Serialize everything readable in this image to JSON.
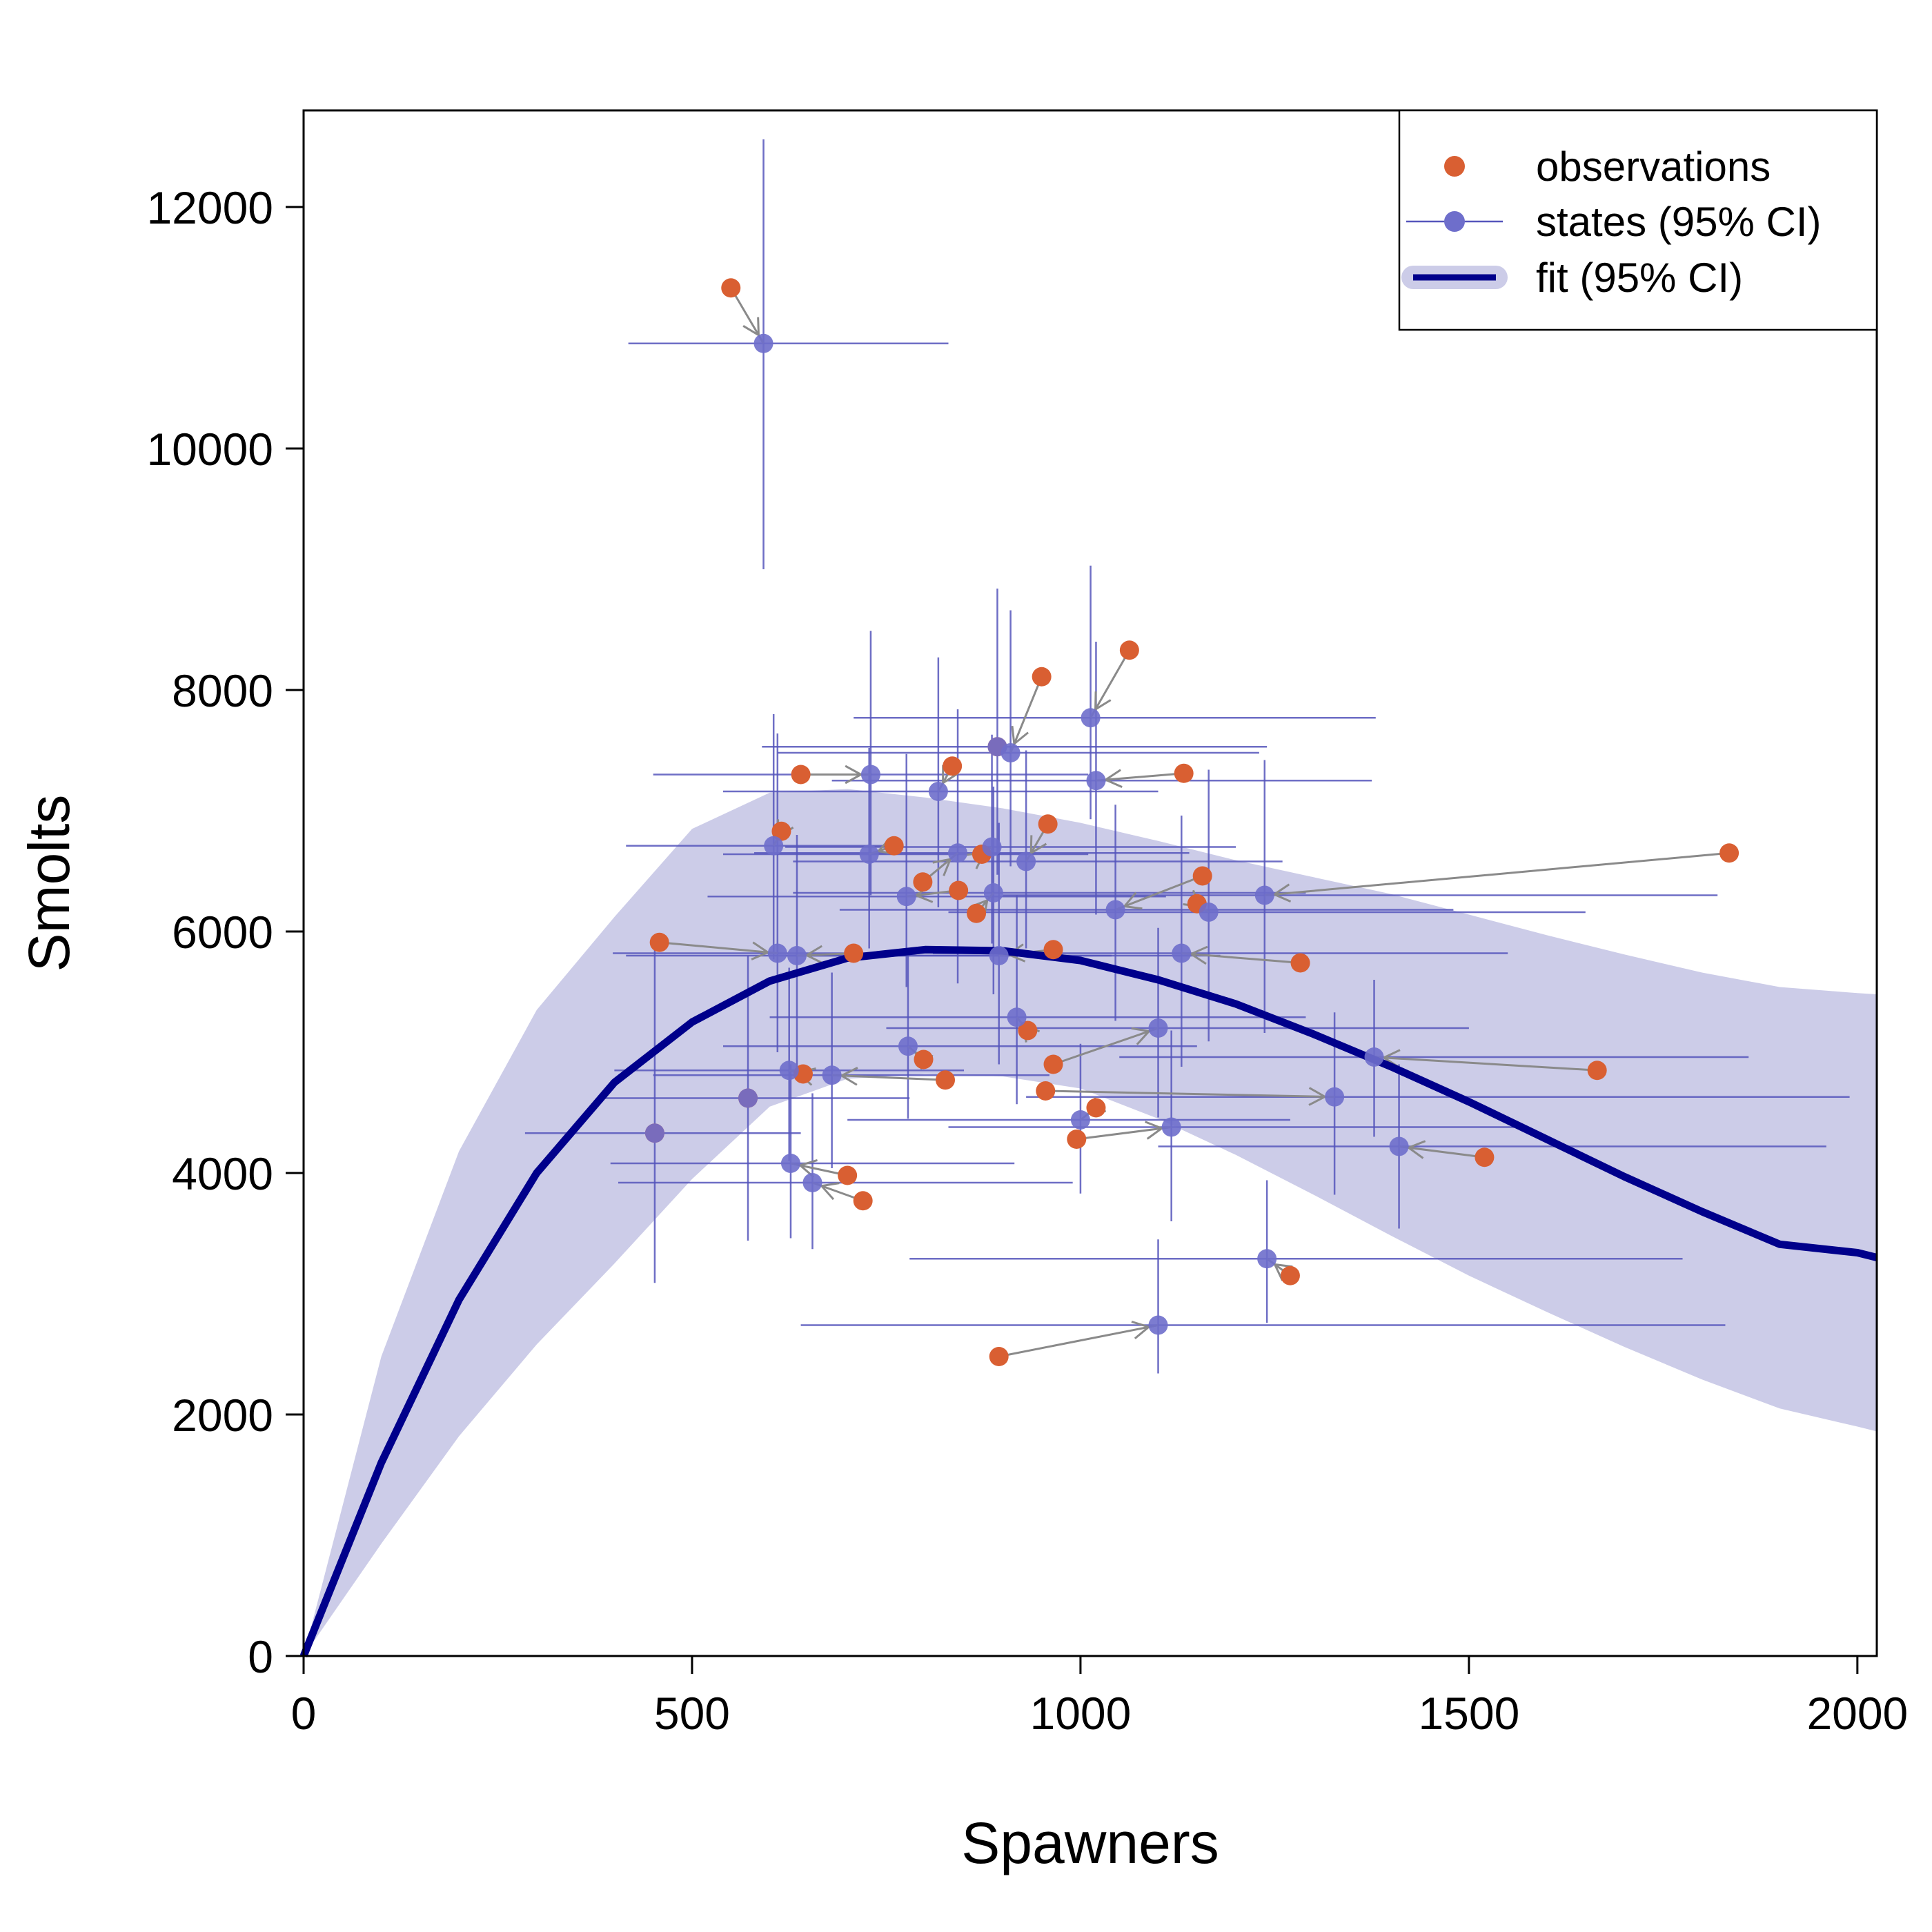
{
  "chart_data": {
    "type": "scatter",
    "xlabel": "Spawners",
    "ylabel": "Smolts",
    "xlim": [
      0,
      2025
    ],
    "ylim": [
      0,
      12800
    ],
    "x_ticks": [
      0,
      500,
      1000,
      1500,
      2000
    ],
    "y_ticks": [
      0,
      2000,
      4000,
      6000,
      8000,
      10000,
      12000
    ],
    "x_tick_labels": [
      "0",
      "500",
      "1000",
      "1500",
      "2000"
    ],
    "y_tick_labels": [
      "0",
      "2000",
      "4000",
      "6000",
      "8000",
      "10000",
      "12000"
    ],
    "legend": {
      "position": "top-right",
      "entries": [
        {
          "label": "observations"
        },
        {
          "label": "states (95% CI)"
        },
        {
          "label": "fit (95% CI)"
        }
      ]
    },
    "colors": {
      "observation": "#D95F32",
      "state": "#6E6ECB",
      "state_ci": "#5555BB",
      "link": "#8A8A8A",
      "fit_line": "#00008B",
      "fit_band": "#CCCCE8"
    },
    "fit": {
      "x": [
        0,
        100,
        200,
        300,
        400,
        500,
        600,
        700,
        800,
        900,
        1000,
        1100,
        1200,
        1300,
        1400,
        1500,
        1600,
        1700,
        1800,
        1900,
        2000,
        2025
      ],
      "y": [
        0,
        1600,
        2950,
        4000,
        4750,
        5250,
        5590,
        5780,
        5850,
        5840,
        5760,
        5600,
        5400,
        5150,
        4880,
        4590,
        4280,
        3970,
        3680,
        3410,
        3340,
        3300
      ],
      "lower": [
        0,
        930,
        1820,
        2580,
        3250,
        3950,
        4550,
        4780,
        4820,
        4800,
        4700,
        4450,
        4150,
        3820,
        3480,
        3150,
        2850,
        2560,
        2290,
        2050,
        1900,
        1860
      ],
      "upper": [
        0,
        2480,
        4180,
        5350,
        6120,
        6850,
        7150,
        7180,
        7110,
        7020,
        6900,
        6750,
        6590,
        6450,
        6310,
        6140,
        5970,
        5810,
        5660,
        5540,
        5490,
        5480
      ]
    },
    "points": [
      {
        "obs": [
          550,
          11330
        ],
        "state": [
          592,
          10870
        ],
        "x_ci": [
          418,
          830
        ],
        "y_ci": [
          9000,
          12560
        ]
      },
      {
        "obs": [
          1063,
          8330
        ],
        "state": [
          1013,
          7770
        ],
        "x_ci": [
          708,
          1380
        ],
        "y_ci": [
          6930,
          9030
        ]
      },
      {
        "obs": [
          950,
          8110
        ],
        "state": [
          910,
          7480
        ],
        "x_ci": [
          610,
          1230
        ],
        "y_ci": [
          6540,
          8660
        ]
      },
      {
        "obs": [
          893,
          7530
        ],
        "state": [
          893,
          7530
        ],
        "x_ci": [
          590,
          1240
        ],
        "y_ci": [
          6470,
          8840
        ]
      },
      {
        "obs": [
          640,
          7300
        ],
        "state": [
          730,
          7300
        ],
        "x_ci": [
          450,
          1010
        ],
        "y_ci": [
          6300,
          8490
        ]
      },
      {
        "obs": [
          835,
          7370
        ],
        "state": [
          817,
          7160
        ],
        "x_ci": [
          540,
          1100
        ],
        "y_ci": [
          6200,
          8270
        ]
      },
      {
        "obs": [
          1133,
          7310
        ],
        "state": [
          1020,
          7250
        ],
        "x_ci": [
          680,
          1375
        ],
        "y_ci": [
          6140,
          8400
        ]
      },
      {
        "obs": [
          615,
          6830
        ],
        "state": [
          605,
          6710
        ],
        "x_ci": [
          415,
          770
        ],
        "y_ci": [
          5770,
          7800
        ]
      },
      {
        "obs": [
          760,
          6710
        ],
        "state": [
          728,
          6640
        ],
        "x_ci": [
          540,
          1010
        ],
        "y_ci": [
          5860,
          7520
        ]
      },
      {
        "obs": [
          873,
          6640
        ],
        "state": [
          886,
          6700
        ],
        "x_ci": [
          620,
          1200
        ],
        "y_ci": [
          5900,
          7630
        ]
      },
      {
        "obs": [
          958,
          6890
        ],
        "state": [
          930,
          6580
        ],
        "x_ci": [
          630,
          1260
        ],
        "y_ci": [
          5860,
          7500
        ]
      },
      {
        "obs": [
          797,
          6410
        ],
        "state": [
          842,
          6650
        ],
        "x_ci": [
          580,
          1140
        ],
        "y_ci": [
          5570,
          7840
        ]
      },
      {
        "obs": [
          843,
          6340
        ],
        "state": [
          776,
          6290
        ],
        "x_ci": [
          520,
          1110
        ],
        "y_ci": [
          5540,
          7470
        ]
      },
      {
        "obs": [
          866,
          6150
        ],
        "state": [
          888,
          6320
        ],
        "x_ci": [
          630,
          1290
        ],
        "y_ci": [
          5480,
          7200
        ]
      },
      {
        "obs": [
          1157,
          6460
        ],
        "state": [
          1045,
          6180
        ],
        "x_ci": [
          690,
          1480
        ],
        "y_ci": [
          5260,
          7050
        ]
      },
      {
        "obs": [
          1150,
          6230
        ],
        "state": [
          1165,
          6160
        ],
        "x_ci": [
          830,
          1650
        ],
        "y_ci": [
          5090,
          7340
        ]
      },
      {
        "obs": [
          1835,
          6650
        ],
        "state": [
          1237,
          6300
        ],
        "x_ci": [
          900,
          1820
        ],
        "y_ci": [
          5160,
          7420
        ]
      },
      {
        "obs": [
          458,
          5910
        ],
        "state": [
          610,
          5820
        ],
        "x_ci": [
          398,
          785
        ],
        "y_ci": [
          5000,
          7640
        ]
      },
      {
        "obs": [
          708,
          5820
        ],
        "state": [
          635,
          5800
        ],
        "x_ci": [
          415,
          1040
        ],
        "y_ci": [
          4800,
          6800
        ]
      },
      {
        "obs": [
          965,
          5850
        ],
        "state": [
          895,
          5800
        ],
        "x_ci": [
          620,
          1180
        ],
        "y_ci": [
          4900,
          6900
        ]
      },
      {
        "obs": [
          1283,
          5740
        ],
        "state": [
          1130,
          5820
        ],
        "x_ci": [
          810,
          1550
        ],
        "y_ci": [
          4880,
          6960
        ]
      },
      {
        "obs": [
          932,
          5180
        ],
        "state": [
          918,
          5290
        ],
        "x_ci": [
          600,
          1290
        ],
        "y_ci": [
          4570,
          6300
        ]
      },
      {
        "obs": [
          798,
          4940
        ],
        "state": [
          778,
          5050
        ],
        "x_ci": [
          540,
          1150
        ],
        "y_ci": [
          4450,
          5820
        ]
      },
      {
        "obs": [
          965,
          4900
        ],
        "state": [
          1100,
          5200
        ],
        "x_ci": [
          750,
          1500
        ],
        "y_ci": [
          4460,
          6030
        ]
      },
      {
        "obs": [
          1665,
          4850
        ],
        "state": [
          1378,
          4960
        ],
        "x_ci": [
          1050,
          1860
        ],
        "y_ci": [
          4300,
          5600
        ]
      },
      {
        "obs": [
          643,
          4820
        ],
        "state": [
          625,
          4850
        ],
        "x_ci": [
          400,
          850
        ],
        "y_ci": [
          4100,
          5700
        ]
      },
      {
        "obs": [
          826,
          4770
        ],
        "state": [
          680,
          4810
        ],
        "x_ci": [
          450,
          960
        ],
        "y_ci": [
          4040,
          5660
        ]
      },
      {
        "obs": [
          955,
          4680
        ],
        "state": [
          1327,
          4630
        ],
        "x_ci": [
          930,
          1990
        ],
        "y_ci": [
          3820,
          5330
        ]
      },
      {
        "obs": [
          1020,
          4540
        ],
        "state": [
          1000,
          4440
        ],
        "x_ci": [
          700,
          1270
        ],
        "y_ci": [
          3830,
          5070
        ]
      },
      {
        "obs": [
          995,
          4280
        ],
        "state": [
          1117,
          4380
        ],
        "x_ci": [
          830,
          1560
        ],
        "y_ci": [
          3600,
          5180
        ]
      },
      {
        "obs": [
          1520,
          4130
        ],
        "state": [
          1410,
          4220
        ],
        "x_ci": [
          1100,
          1960
        ],
        "y_ci": [
          3540,
          4900
        ]
      },
      {
        "obs": [
          700,
          3980
        ],
        "state": [
          627,
          4080
        ],
        "x_ci": [
          395,
          915
        ],
        "y_ci": [
          3460,
          4900
        ]
      },
      {
        "obs": [
          720,
          3770
        ],
        "state": [
          655,
          3920
        ],
        "x_ci": [
          405,
          990
        ],
        "y_ci": [
          3370,
          4660
        ]
      },
      {
        "obs": [
          572,
          4620
        ],
        "state": [
          572,
          4620
        ],
        "x_ci": [
          380,
          780
        ],
        "y_ci": [
          3440,
          5800
        ]
      },
      {
        "obs": [
          452,
          4330
        ],
        "state": [
          452,
          4330
        ],
        "x_ci": [
          285,
          640
        ],
        "y_ci": [
          3090,
          5850
        ]
      },
      {
        "obs": [
          1270,
          3150
        ],
        "state": [
          1240,
          3290
        ],
        "x_ci": [
          780,
          1775
        ],
        "y_ci": [
          2760,
          3940
        ]
      },
      {
        "obs": [
          895,
          2480
        ],
        "state": [
          1100,
          2740
        ],
        "x_ci": [
          640,
          1830
        ],
        "y_ci": [
          2340,
          3450
        ]
      }
    ]
  }
}
